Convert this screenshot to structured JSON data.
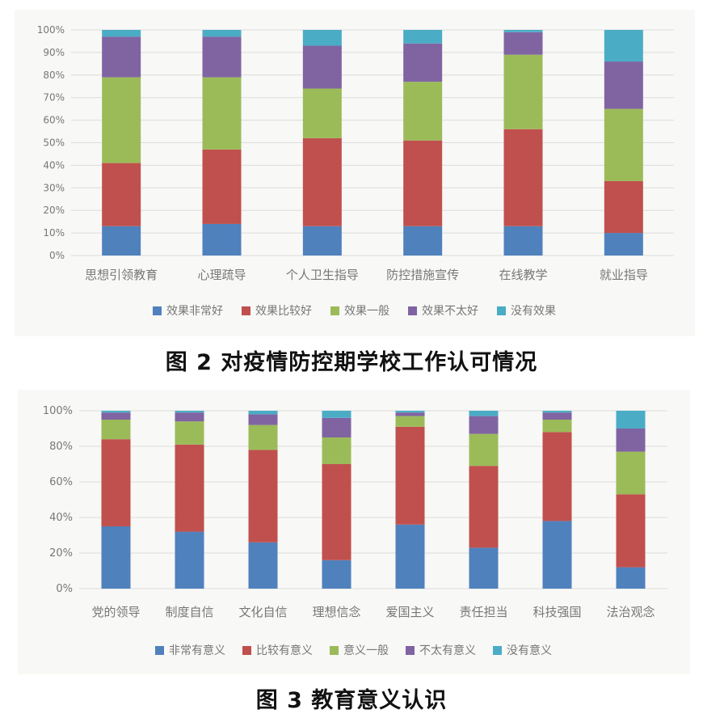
{
  "figures": [
    {
      "caption": "图 2   对疫情防控期学校工作认可情况",
      "chart_data": {
        "type": "bar",
        "stacked": true,
        "categories": [
          "思想引领教育",
          "心理疏导",
          "个人卫生指导",
          "防控措施宣传",
          "在线教学",
          "就业指导"
        ],
        "series": [
          {
            "name": "效果非常好",
            "color": "#4f81bd",
            "values": [
              13,
              14,
              13,
              13,
              13,
              10
            ]
          },
          {
            "name": "效果比较好",
            "color": "#c0504d",
            "values": [
              28,
              33,
              39,
              38,
              43,
              23
            ]
          },
          {
            "name": "效果一般",
            "color": "#9bbb59",
            "values": [
              38,
              32,
              22,
              26,
              33,
              32
            ]
          },
          {
            "name": "效果不太好",
            "color": "#8064a2",
            "values": [
              18,
              18,
              19,
              17,
              10,
              21
            ]
          },
          {
            "name": "没有效果",
            "color": "#4bacc6",
            "values": [
              3,
              3,
              7,
              6,
              1,
              14
            ]
          }
        ],
        "yticks": [
          "0%",
          "10%",
          "20%",
          "30%",
          "40%",
          "50%",
          "60%",
          "70%",
          "80%",
          "90%",
          "100%"
        ],
        "ylim": [
          0,
          100
        ],
        "grid": true,
        "legend_position": "bottom"
      }
    },
    {
      "caption": "图 3   教育意义认识",
      "chart_data": {
        "type": "bar",
        "stacked": true,
        "categories": [
          "党的领导",
          "制度自信",
          "文化自信",
          "理想信念",
          "爱国主义",
          "责任担当",
          "科技强国",
          "法治观念"
        ],
        "series": [
          {
            "name": "非常有意义",
            "color": "#4f81bd",
            "values": [
              35,
              32,
              26,
              16,
              36,
              23,
              38,
              12
            ]
          },
          {
            "name": "比较有意义",
            "color": "#c0504d",
            "values": [
              49,
              49,
              52,
              54,
              55,
              46,
              50,
              41
            ]
          },
          {
            "name": "意义一般",
            "color": "#9bbb59",
            "values": [
              11,
              13,
              14,
              15,
              6,
              18,
              7,
              24
            ]
          },
          {
            "name": "不太有意义",
            "color": "#8064a2",
            "values": [
              4,
              5,
              6,
              11,
              2,
              10,
              4,
              13
            ]
          },
          {
            "name": "没有意义",
            "color": "#4bacc6",
            "values": [
              1,
              1,
              2,
              4,
              1,
              3,
              1,
              10
            ]
          }
        ],
        "yticks": [
          "0%",
          "20%",
          "40%",
          "60%",
          "80%",
          "100%"
        ],
        "ylim": [
          0,
          100
        ],
        "grid": true,
        "legend_position": "bottom"
      }
    }
  ]
}
